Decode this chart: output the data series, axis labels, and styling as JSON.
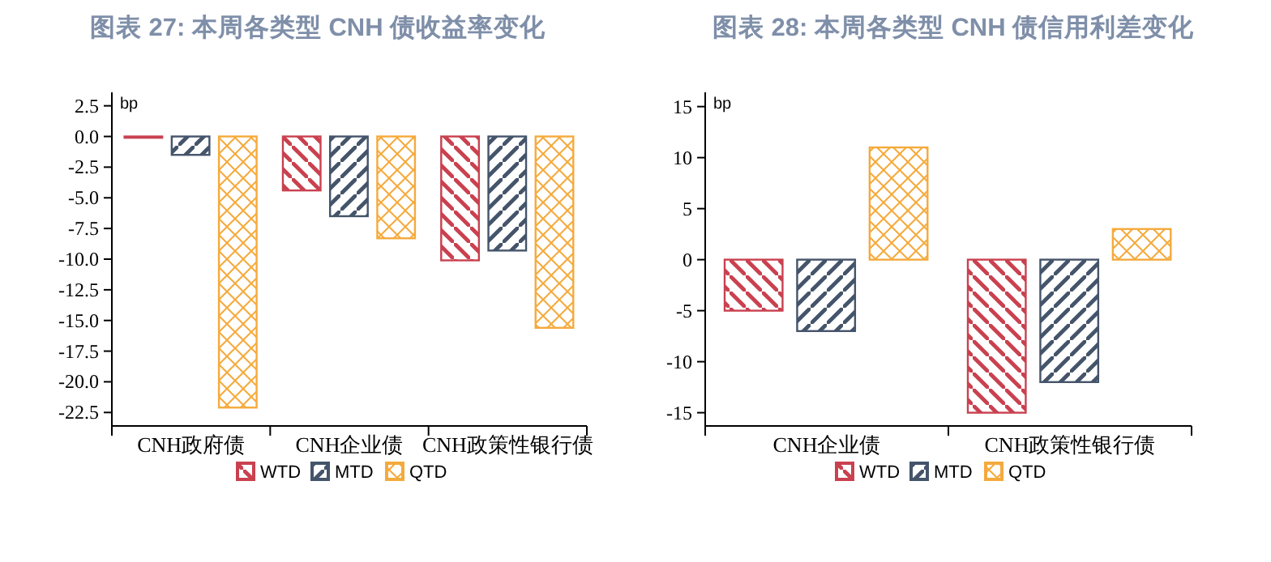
{
  "chart_data": [
    {
      "type": "bar",
      "title": "图表 27: 本周各类型 CNH 债收益率变化",
      "ylabel": "bp",
      "categories": [
        "CNH政府债",
        "CNH企业债",
        "CNH政策性银行债"
      ],
      "series": [
        {
          "name": "WTD",
          "color": "#c9414f",
          "values": [
            0,
            -4.4,
            -10.1
          ]
        },
        {
          "name": "MTD",
          "color": "#44546a",
          "values": [
            -1.5,
            -6.5,
            -9.3
          ]
        },
        {
          "name": "QTD",
          "color": "#f5aa3c",
          "values": [
            -22.1,
            -8.3,
            -15.6
          ]
        }
      ],
      "ylim": [
        -23.6,
        3.6
      ],
      "yticks": [
        {
          "value": 2.5,
          "label": "2.5"
        },
        {
          "value": 0,
          "label": "0.0"
        },
        {
          "value": -2.5,
          "label": "-2.5"
        },
        {
          "value": -5,
          "label": "-5.0"
        },
        {
          "value": -7.5,
          "label": "-7.5"
        },
        {
          "value": -10,
          "label": "-10.0"
        },
        {
          "value": -12.5,
          "label": "-12.5"
        },
        {
          "value": -15,
          "label": "-15.0"
        },
        {
          "value": -17.5,
          "label": "-17.5"
        },
        {
          "value": -20,
          "label": "-20.0"
        },
        {
          "value": -22.5,
          "label": "-22.5"
        }
      ],
      "grid": false,
      "legend": "bottom"
    },
    {
      "type": "bar",
      "title": "图表 28: 本周各类型 CNH 债信用利差变化",
      "ylabel": "bp",
      "categories": [
        "CNH企业债",
        "CNH政策性银行债"
      ],
      "series": [
        {
          "name": "WTD",
          "color": "#c9414f",
          "values": [
            -5,
            -15
          ]
        },
        {
          "name": "MTD",
          "color": "#44546a",
          "values": [
            -7,
            -12
          ]
        },
        {
          "name": "QTD",
          "color": "#f5aa3c",
          "values": [
            11,
            3
          ]
        }
      ],
      "ylim": [
        -16.3,
        16.4
      ],
      "yticks": [
        15,
        10,
        5,
        0,
        -5,
        -10,
        -15
      ],
      "grid": false,
      "legend": "bottom"
    }
  ]
}
